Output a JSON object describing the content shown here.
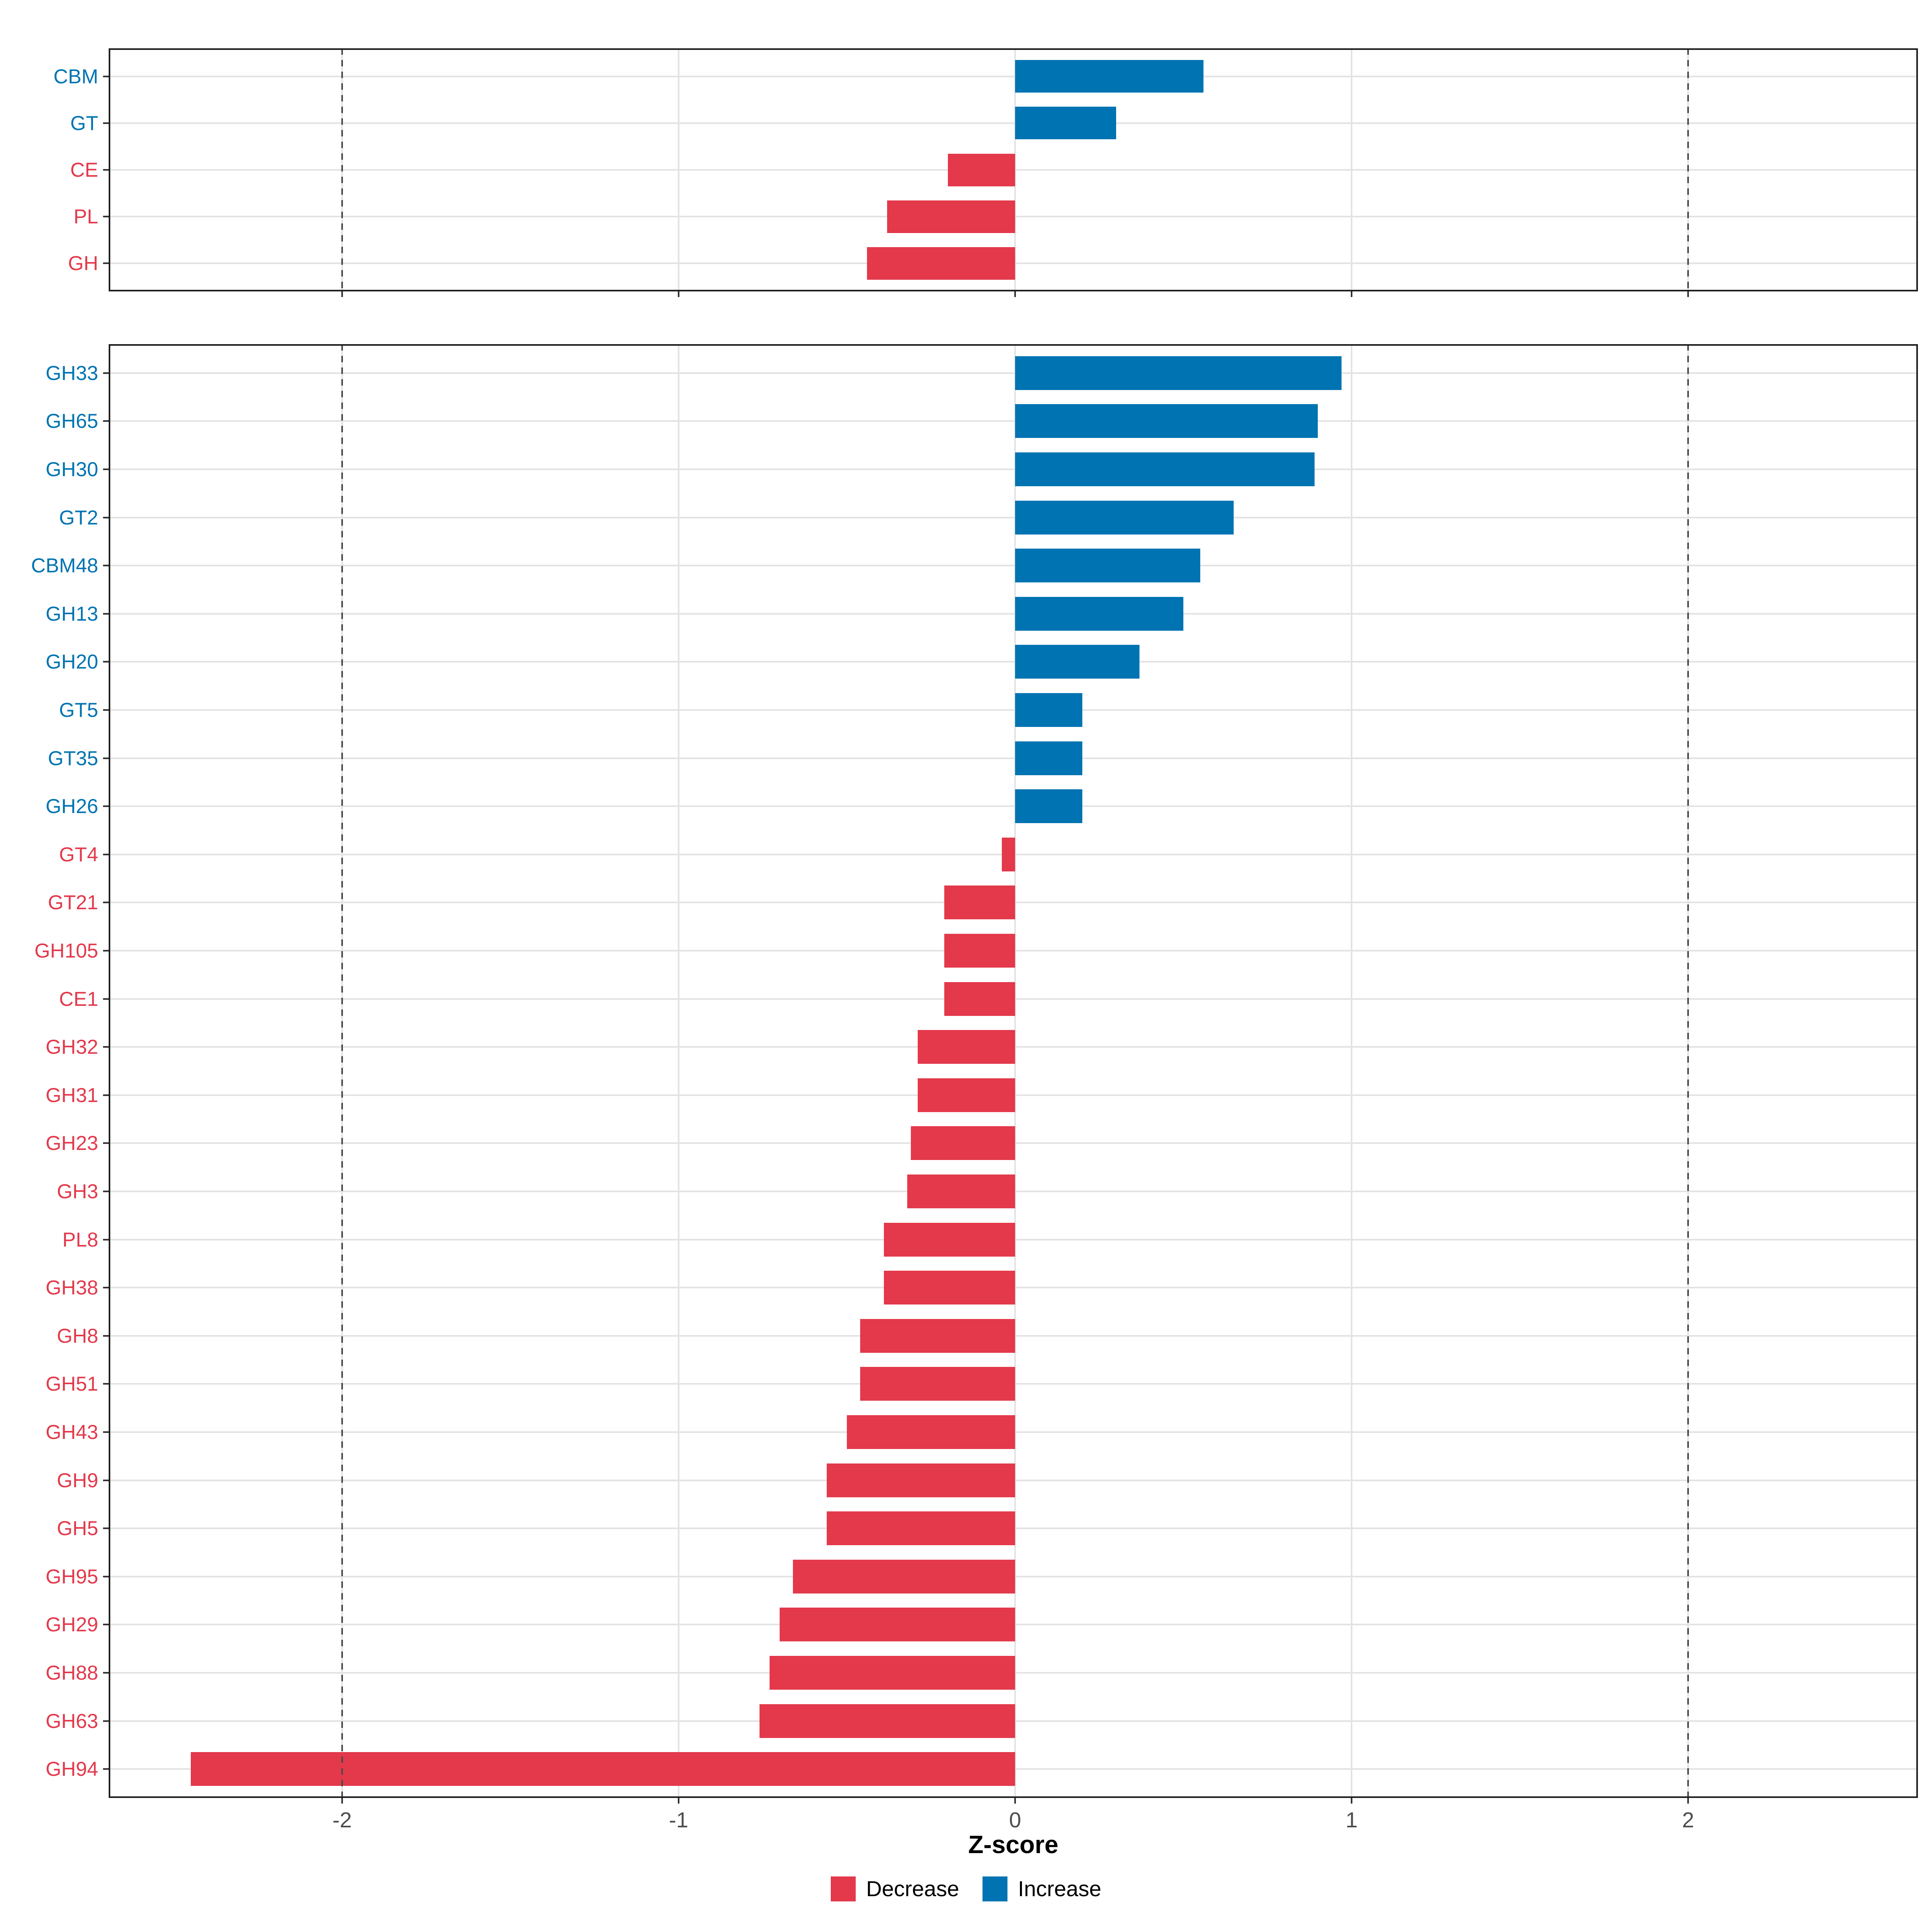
{
  "figure": {
    "x_axis": {
      "title": "Z-score",
      "tick_labels": [
        "-2",
        "-1",
        "0",
        "1",
        "2"
      ],
      "tick_values": [
        -2,
        -1,
        0,
        1,
        2
      ],
      "range": [
        -2.69,
        2.68
      ],
      "reference_lines": [
        -2,
        2
      ]
    },
    "legend": {
      "items": [
        {
          "label": "Decrease",
          "color": "#E3394B"
        },
        {
          "label": "Increase",
          "color": "#0073B2"
        }
      ]
    },
    "colors": {
      "increase": "#0073B2",
      "decrease": "#E3394B",
      "grid": "#E3E3E3",
      "panel_border": "#1F1F1F",
      "tick": "#333333",
      "tick_label": "#4D4D4D",
      "reference_line": "#4A4A4A",
      "axis_title": "#000000",
      "background": "#FFFFFF"
    }
  },
  "chart_data": [
    {
      "type": "bar",
      "orientation": "horizontal",
      "panel": "top",
      "xlabel": "Z-score",
      "xlim": [
        -2.69,
        2.68
      ],
      "grid": true,
      "legend_position": "bottom",
      "categories": [
        "CBM",
        "GT",
        "CE",
        "PL",
        "GH"
      ],
      "values": [
        0.56,
        0.3,
        -0.2,
        -0.38,
        -0.44
      ],
      "groups": [
        "Increase",
        "Increase",
        "Decrease",
        "Decrease",
        "Decrease"
      ]
    },
    {
      "type": "bar",
      "orientation": "horizontal",
      "panel": "bottom",
      "xlabel": "Z-score",
      "xlim": [
        -2.69,
        2.68
      ],
      "grid": true,
      "legend_position": "bottom",
      "categories": [
        "GH33",
        "GH65",
        "GH30",
        "GT2",
        "CBM48",
        "GH13",
        "GH20",
        "GT5",
        "GT35",
        "GH26",
        "GT4",
        "GT21",
        "GH105",
        "CE1",
        "GH32",
        "GH31",
        "GH23",
        "GH3",
        "PL8",
        "GH38",
        "GH8",
        "GH51",
        "GH43",
        "GH9",
        "GH5",
        "GH95",
        "GH29",
        "GH88",
        "GH63",
        "GH94"
      ],
      "values": [
        0.97,
        0.9,
        0.89,
        0.65,
        0.55,
        0.5,
        0.37,
        0.2,
        0.2,
        0.2,
        -0.04,
        -0.21,
        -0.21,
        -0.21,
        -0.29,
        -0.29,
        -0.31,
        -0.32,
        -0.39,
        -0.39,
        -0.46,
        -0.46,
        -0.5,
        -0.56,
        -0.56,
        -0.66,
        -0.7,
        -0.73,
        -0.76,
        -2.45
      ],
      "groups": [
        "Increase",
        "Increase",
        "Increase",
        "Increase",
        "Increase",
        "Increase",
        "Increase",
        "Increase",
        "Increase",
        "Increase",
        "Decrease",
        "Decrease",
        "Decrease",
        "Decrease",
        "Decrease",
        "Decrease",
        "Decrease",
        "Decrease",
        "Decrease",
        "Decrease",
        "Decrease",
        "Decrease",
        "Decrease",
        "Decrease",
        "Decrease",
        "Decrease",
        "Decrease",
        "Decrease",
        "Decrease",
        "Decrease"
      ]
    }
  ]
}
